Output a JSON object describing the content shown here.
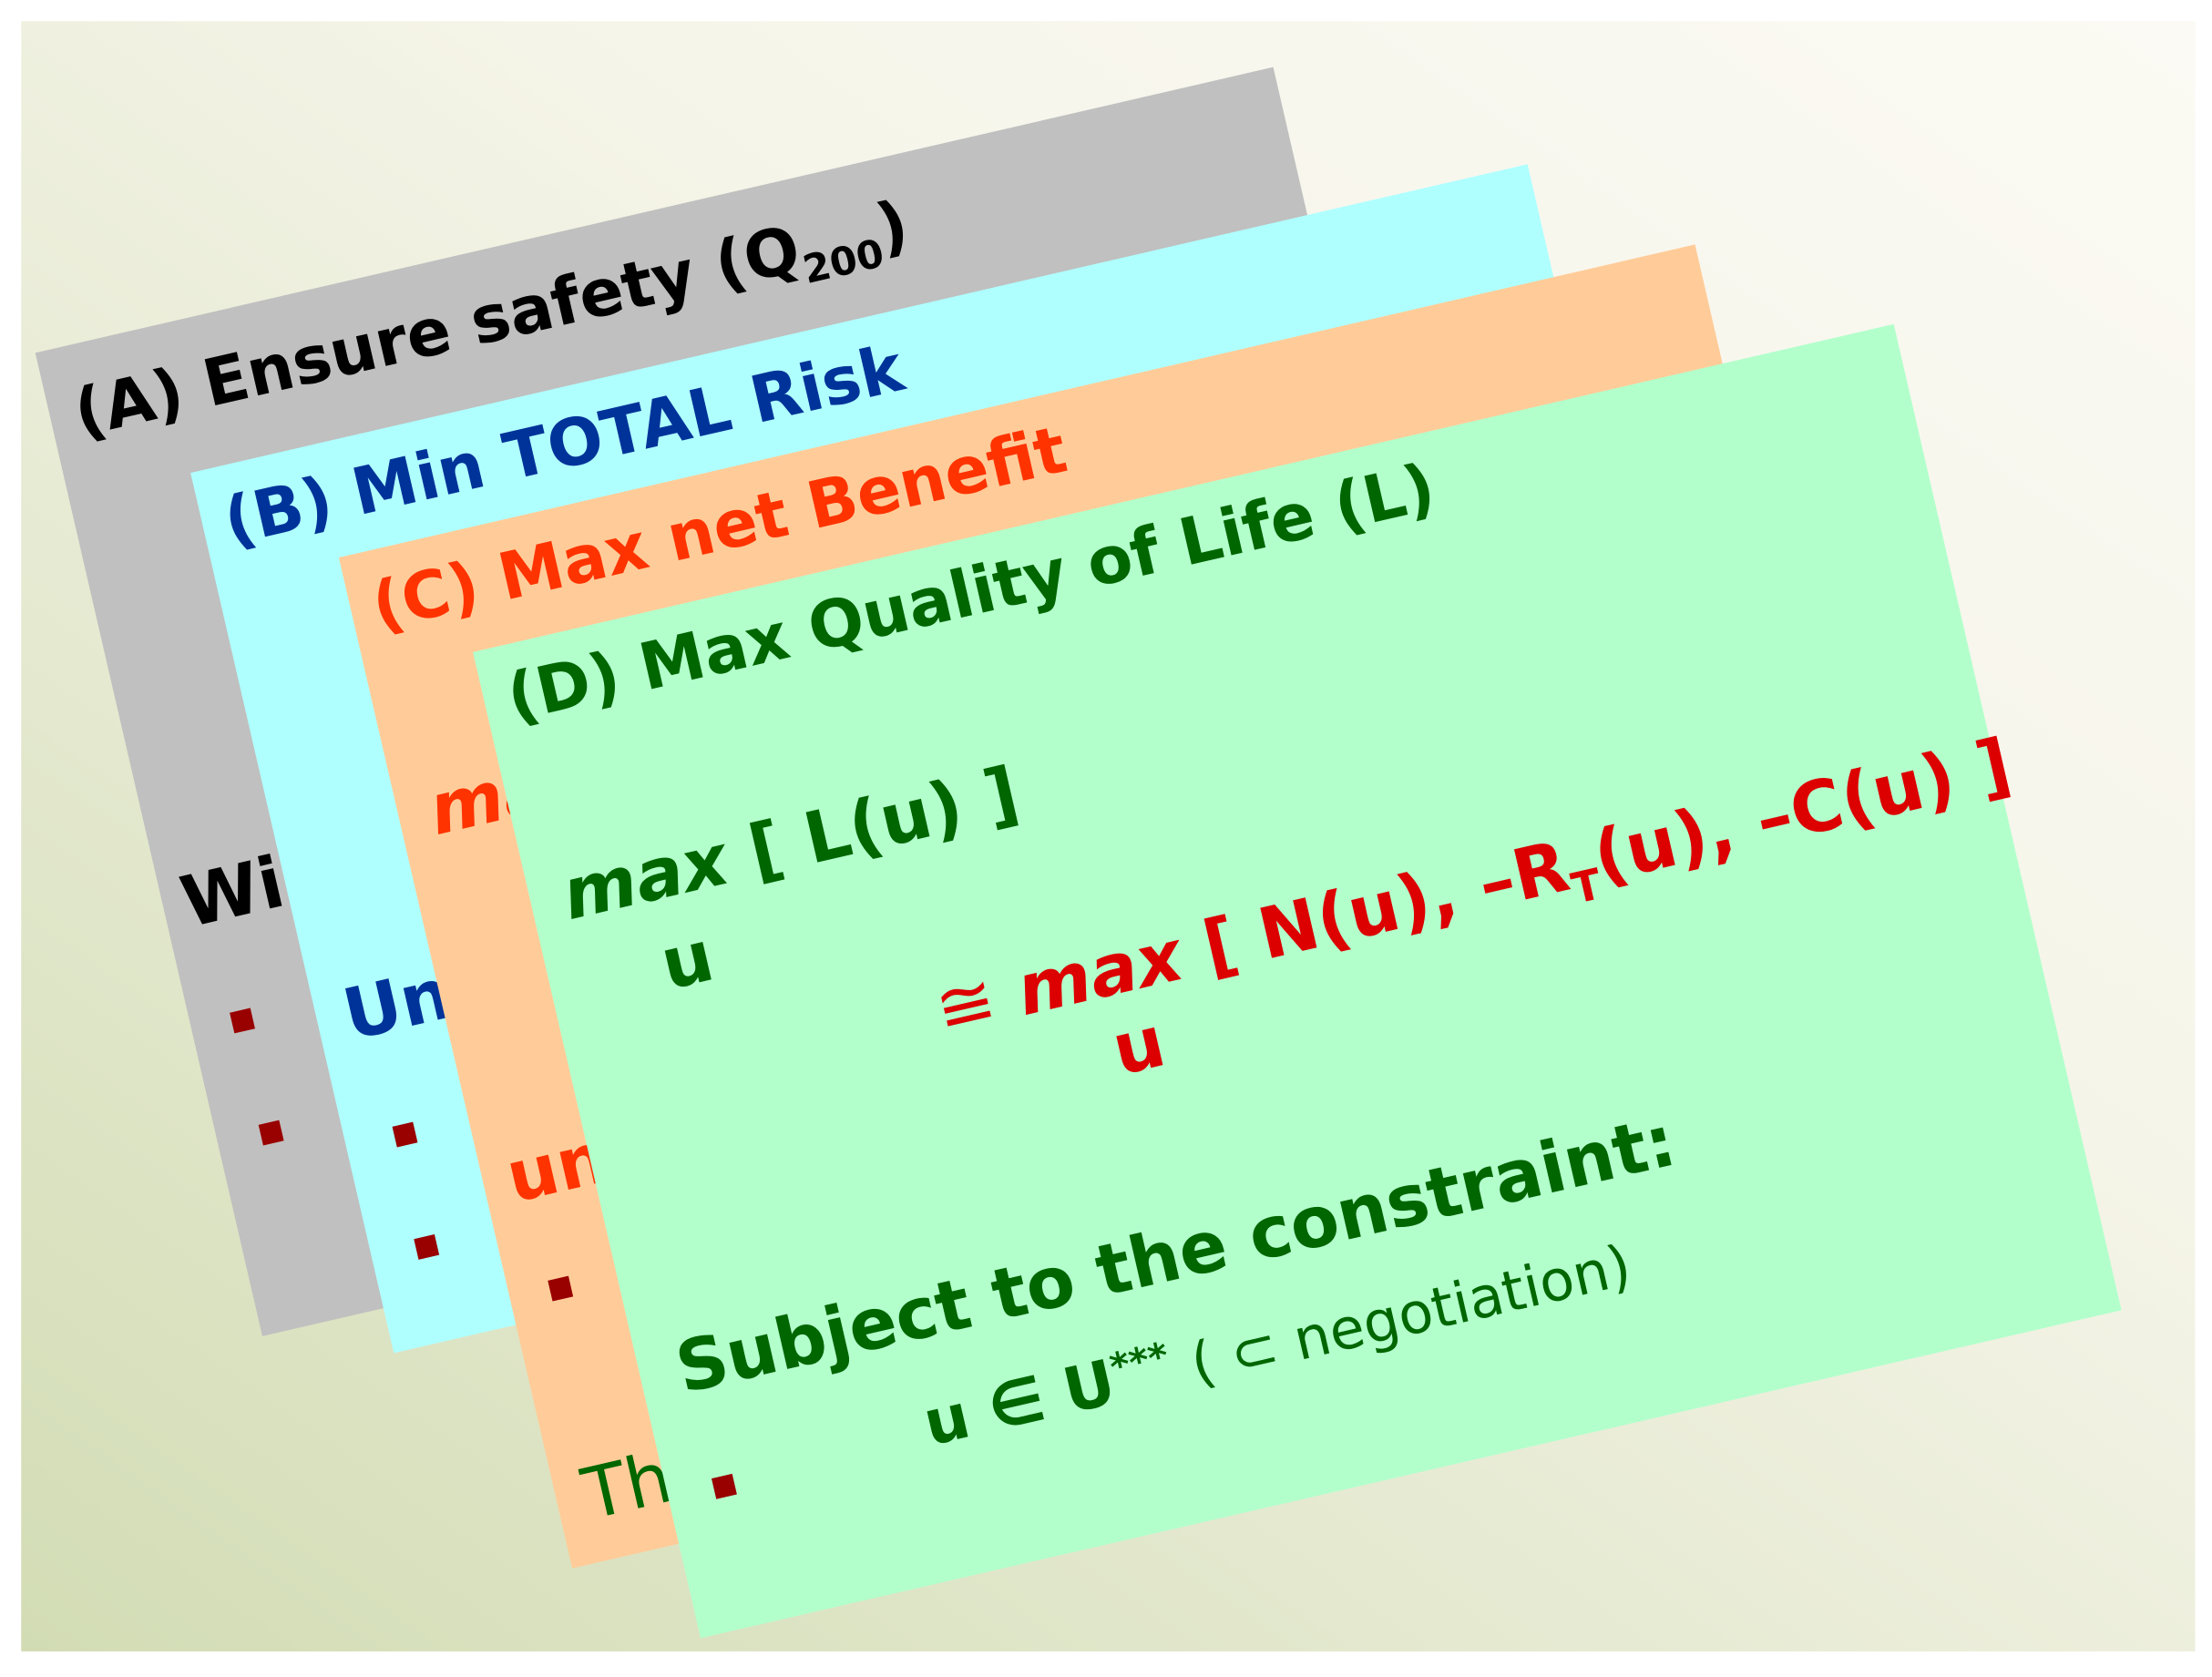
{
  "cards": [
    {
      "title": "(A) Ensure safety (Q",
      "title_subscript": "200",
      "title_close": ")",
      "text": "Wi"
    },
    {
      "title": "(B) Min TOTAL Risk",
      "text": "Un"
    },
    {
      "title": "(C) Max net Benefit",
      "text_1": "ma",
      "text_2": "un",
      "text_3": "Th"
    },
    {
      "title": "(D) Max Quality of Life (L)",
      "objective": {
        "operator": "max",
        "argument": "[ L(u) ]",
        "subscript": "u"
      },
      "approx": {
        "symbol": "≅",
        "operator": "max",
        "argument_start": "[ N(u), –R",
        "argument_subscript": "T",
        "argument_end": "(u), –C(u) ]",
        "subscript": "u"
      },
      "constraint_heading": "Subject to the constraint:",
      "constraint": "u ∈ U",
      "constraint_superscript": "***",
      "constraint_note": "( ⊂  negotiation)"
    }
  ]
}
